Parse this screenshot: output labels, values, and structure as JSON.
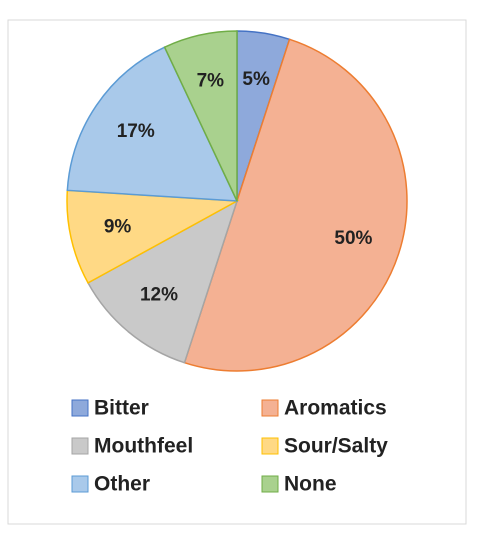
{
  "chart_data": {
    "type": "pie",
    "categories": [
      "Bitter",
      "Aromatics",
      "Mouthfeel",
      "Sour/Salty",
      "Other",
      "None"
    ],
    "values": [
      5,
      50,
      12,
      9,
      17,
      7
    ],
    "value_labels": [
      "5%",
      "50%",
      "12%",
      "9%",
      "17%",
      "7%"
    ],
    "colors": [
      "#8ea9db",
      "#f4b193",
      "#c9c9c9",
      "#ffd985",
      "#a9c9ea",
      "#a9d18e"
    ],
    "edge_colors": [
      "#4472c4",
      "#ed7d31",
      "#a5a5a5",
      "#ffc000",
      "#5b9bd5",
      "#70ad47"
    ],
    "legend": "bottom"
  }
}
